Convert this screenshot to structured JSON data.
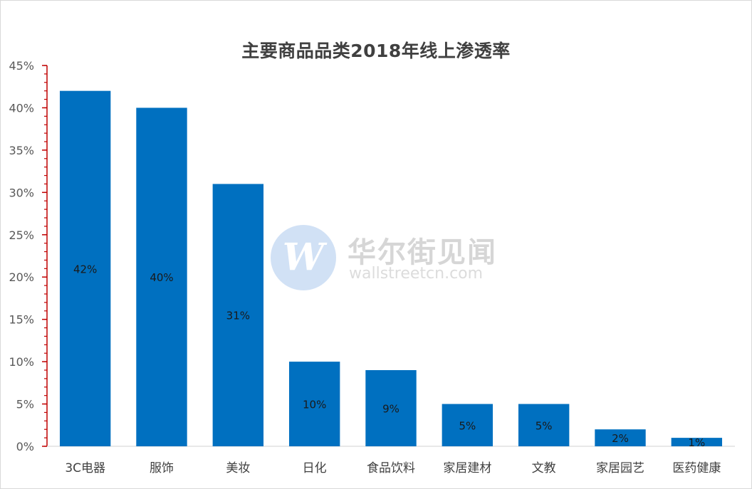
{
  "chart_data": {
    "type": "bar",
    "title": "主要商品品类2018年线上渗透率",
    "xlabel": "",
    "ylabel": "",
    "categories": [
      "3C电器",
      "服饰",
      "美妆",
      "日化",
      "食品饮料",
      "家居建材",
      "文教",
      "家居园艺",
      "医药健康"
    ],
    "values": [
      0.42,
      0.4,
      0.31,
      0.1,
      0.09,
      0.05,
      0.05,
      0.02,
      0.01
    ],
    "data_labels": [
      "42%",
      "40%",
      "31%",
      "10%",
      "9%",
      "5%",
      "5%",
      "2%",
      "1%"
    ],
    "ylim": [
      0,
      0.45
    ],
    "y_ticks": [
      0,
      0.05,
      0.1,
      0.15,
      0.2,
      0.25,
      0.3,
      0.35,
      0.4,
      0.45
    ],
    "y_tick_labels": [
      "0%",
      "5%",
      "10%",
      "15%",
      "20%",
      "25%",
      "30%",
      "35%",
      "40%",
      "45%"
    ],
    "bar_color": "#0070c0",
    "axis_color": "#c00000",
    "grid": false,
    "legend": "none"
  },
  "watermark": {
    "logo_letter": "W",
    "name_cn": "华尔街见闻",
    "name_en": "wallstreetcn.com"
  }
}
